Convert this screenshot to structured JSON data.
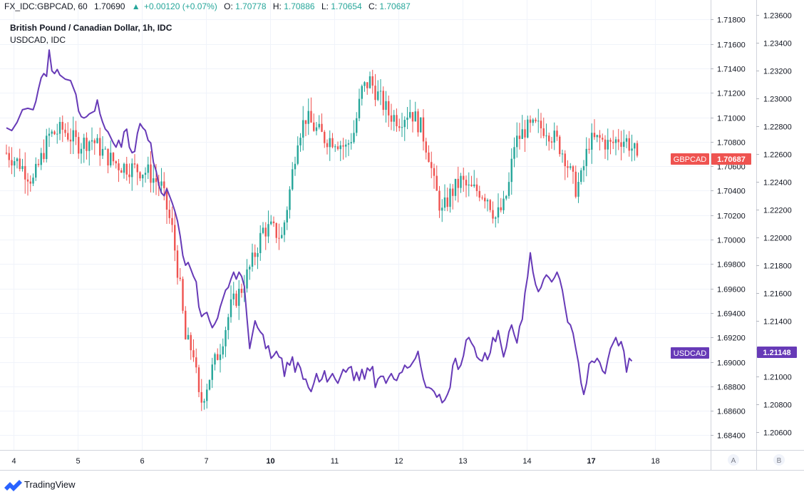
{
  "header": {
    "symbol": "FX_IDC:GBPCAD, 60",
    "last": "1.70690",
    "change": "+0.00120 (+0.07%)",
    "open_label": "O:",
    "open": "1.70778",
    "high_label": "H:",
    "high": "1.70886",
    "low_label": "L:",
    "low": "1.70654",
    "close_label": "C:",
    "close": "1.70687"
  },
  "legend": {
    "main": "British Pound / Canadian Dollar, 1h, IDC",
    "compare": "USDCAD, IDC"
  },
  "price_badges": {
    "gbpcad_label": "GBPCAD",
    "gbpcad_value": "1.70687",
    "usdcad_label": "USDCAD",
    "usdcad_value": "1.21148"
  },
  "scale_buttons": {
    "a": "A",
    "b": "B"
  },
  "footer": {
    "logo_text": "TradingView"
  },
  "colors": {
    "up": "#26a69a",
    "down": "#ef5350",
    "compare_line": "#673ab7",
    "grid": "#f0f3fa",
    "text": "#131722",
    "up_header": "#26a69a"
  },
  "chart_data": {
    "type": "candlestick+line",
    "left_axis": {
      "ticks": [
        "1.68400",
        "1.68600",
        "1.68800",
        "1.69000",
        "1.69200",
        "1.69400",
        "1.69600",
        "1.69800",
        "1.70000",
        "1.70200",
        "1.70400",
        "1.70600",
        "1.70800",
        "1.71000",
        "1.71200",
        "1.71400",
        "1.71600",
        "1.71800"
      ],
      "range": [
        1.6828,
        1.7196
      ]
    },
    "right_axis": {
      "ticks": [
        "1.20600",
        "1.20800",
        "1.21000",
        "1.21200",
        "1.21400",
        "1.21600",
        "1.21800",
        "1.22000",
        "1.22200",
        "1.22400",
        "1.22600",
        "1.22800",
        "1.23000",
        "1.23200",
        "1.23400",
        "1.23600"
      ],
      "range": [
        1.2047,
        1.2371
      ]
    },
    "x_axis": {
      "labels": [
        "4",
        "5",
        "6",
        "7",
        "10",
        "11",
        "12",
        "13",
        "14",
        "17",
        "18"
      ],
      "bold": [
        "10",
        "17"
      ],
      "range_hours": [
        0,
        250
      ]
    },
    "grid": true,
    "gbpcad_path": [
      [
        0,
        1.7071
      ],
      [
        5,
        1.7062
      ],
      [
        10,
        1.7048
      ],
      [
        16,
        1.7085
      ],
      [
        21,
        1.709
      ],
      [
        27,
        1.7078
      ],
      [
        32,
        1.7082
      ],
      [
        37,
        1.7069
      ],
      [
        42,
        1.7061
      ],
      [
        48,
        1.7058
      ],
      [
        53,
        1.7055
      ],
      [
        58,
        1.7043
      ],
      [
        62,
        1.7008
      ],
      [
        65,
        1.696
      ],
      [
        67,
        1.6918
      ],
      [
        70,
        1.6908
      ],
      [
        72,
        1.687
      ],
      [
        73,
        1.6868
      ],
      [
        76,
        1.6888
      ],
      [
        80,
        1.6912
      ],
      [
        84,
        1.6945
      ],
      [
        88,
        1.696
      ],
      [
        92,
        1.6982
      ],
      [
        96,
        1.7008
      ],
      [
        99,
        1.7009
      ],
      [
        103,
        1.7002
      ],
      [
        106,
        1.704
      ],
      [
        109,
        1.7085
      ],
      [
        112,
        1.71
      ],
      [
        115,
        1.7092
      ],
      [
        119,
        1.7083
      ],
      [
        123,
        1.7082
      ],
      [
        127,
        1.7075
      ],
      [
        130,
        1.7088
      ],
      [
        133,
        1.7122
      ],
      [
        136,
        1.713
      ],
      [
        139,
        1.7118
      ],
      [
        143,
        1.7103
      ],
      [
        147,
        1.7098
      ],
      [
        151,
        1.7106
      ],
      [
        155,
        1.7092
      ],
      [
        158,
        1.707
      ],
      [
        160,
        1.7045
      ],
      [
        163,
        1.7022
      ],
      [
        166,
        1.7037
      ],
      [
        170,
        1.7048
      ],
      [
        173,
        1.7041
      ],
      [
        177,
        1.704
      ],
      [
        180,
        1.7035
      ],
      [
        183,
        1.7018
      ],
      [
        186,
        1.7027
      ],
      [
        188,
        1.7045
      ],
      [
        190,
        1.7078
      ],
      [
        194,
        1.709
      ],
      [
        198,
        1.7092
      ],
      [
        202,
        1.7091
      ],
      [
        206,
        1.708
      ],
      [
        209,
        1.7068
      ],
      [
        211,
        1.7054
      ],
      [
        213,
        1.7042
      ],
      [
        215,
        1.705
      ],
      [
        218,
        1.708
      ],
      [
        222,
        1.7082
      ],
      [
        226,
        1.7077
      ],
      [
        229,
        1.7083
      ],
      [
        232,
        1.7081
      ],
      [
        235,
        1.7072
      ],
      [
        236,
        1.7069
      ]
    ],
    "usdcad_path": [
      [
        0,
        1.2279
      ],
      [
        2,
        1.2277
      ],
      [
        4,
        1.2283
      ],
      [
        6,
        1.2292
      ],
      [
        8,
        1.2293
      ],
      [
        10,
        1.2292
      ],
      [
        11,
        1.2298
      ],
      [
        12,
        1.2307
      ],
      [
        13,
        1.2315
      ],
      [
        14,
        1.2318
      ],
      [
        15,
        1.2316
      ],
      [
        16,
        1.2335
      ],
      [
        17,
        1.232
      ],
      [
        18,
        1.2318
      ],
      [
        19,
        1.2321
      ],
      [
        20,
        1.2317
      ],
      [
        22,
        1.2314
      ],
      [
        24,
        1.2313
      ],
      [
        26,
        1.2303
      ],
      [
        27,
        1.2291
      ],
      [
        28,
        1.2287
      ],
      [
        29,
        1.2286
      ],
      [
        30,
        1.2287
      ],
      [
        31,
        1.2289
      ],
      [
        33,
        1.2291
      ],
      [
        34,
        1.2299
      ],
      [
        35,
        1.2289
      ],
      [
        36,
        1.2283
      ],
      [
        37,
        1.2278
      ],
      [
        38,
        1.2276
      ],
      [
        39,
        1.2272
      ],
      [
        40,
        1.2268
      ],
      [
        41,
        1.2265
      ],
      [
        42,
        1.227
      ],
      [
        43,
        1.2265
      ],
      [
        44,
        1.2276
      ],
      [
        45,
        1.2278
      ],
      [
        46,
        1.2265
      ],
      [
        47,
        1.2261
      ],
      [
        48,
        1.2262
      ],
      [
        49,
        1.2275
      ],
      [
        50,
        1.2282
      ],
      [
        51,
        1.2279
      ],
      [
        52,
        1.2277
      ],
      [
        53,
        1.227
      ],
      [
        54,
        1.2268
      ],
      [
        55,
        1.2254
      ],
      [
        56,
        1.2248
      ],
      [
        57,
        1.2238
      ],
      [
        58,
        1.2232
      ],
      [
        59,
        1.223
      ],
      [
        60,
        1.2235
      ],
      [
        61,
        1.223
      ],
      [
        62,
        1.2225
      ],
      [
        63,
        1.2219
      ],
      [
        64,
        1.2212
      ],
      [
        65,
        1.2201
      ],
      [
        66,
        1.2187
      ],
      [
        67,
        1.218
      ],
      [
        68,
        1.2182
      ],
      [
        69,
        1.2177
      ],
      [
        70,
        1.2172
      ],
      [
        71,
        1.2168
      ],
      [
        72,
        1.215
      ],
      [
        73,
        1.2143
      ],
      [
        74,
        1.2145
      ],
      [
        75,
        1.2146
      ],
      [
        76,
        1.214
      ],
      [
        77,
        1.2135
      ],
      [
        78,
        1.2138
      ],
      [
        79,
        1.2142
      ],
      [
        80,
        1.215
      ],
      [
        82,
        1.2162
      ],
      [
        83,
        1.2164
      ],
      [
        84,
        1.217
      ],
      [
        85,
        1.2175
      ],
      [
        86,
        1.217
      ],
      [
        87,
        1.2175
      ],
      [
        88,
        1.2172
      ],
      [
        89,
        1.2165
      ],
      [
        90,
        1.2142
      ],
      [
        91,
        1.212
      ],
      [
        92,
        1.213
      ],
      [
        93,
        1.214
      ],
      [
        94,
        1.2135
      ],
      [
        95,
        1.2132
      ],
      [
        96,
        1.213
      ],
      [
        97,
        1.212
      ],
      [
        98,
        1.2122
      ],
      [
        99,
        1.2113
      ],
      [
        100,
        1.2115
      ],
      [
        101,
        1.2118
      ],
      [
        102,
        1.2114
      ],
      [
        103,
        1.2113
      ],
      [
        104,
        1.21
      ],
      [
        105,
        1.211
      ],
      [
        106,
        1.2108
      ],
      [
        107,
        1.2114
      ],
      [
        108,
        1.2103
      ],
      [
        109,
        1.211
      ],
      [
        110,
        1.2106
      ],
      [
        111,
        1.2098
      ],
      [
        112,
        1.2098
      ],
      [
        113,
        1.2092
      ],
      [
        114,
        1.2089
      ],
      [
        115,
        1.2095
      ],
      [
        116,
        1.2102
      ],
      [
        117,
        1.2096
      ],
      [
        118,
        1.2098
      ],
      [
        119,
        1.2104
      ],
      [
        120,
        1.2096
      ],
      [
        121,
        1.2099
      ],
      [
        122,
        1.2102
      ],
      [
        123,
        1.2098
      ],
      [
        124,
        1.2095
      ],
      [
        125,
        1.21
      ],
      [
        126,
        1.2105
      ],
      [
        127,
        1.2103
      ],
      [
        128,
        1.2106
      ],
      [
        129,
        1.2107
      ],
      [
        130,
        1.2097
      ],
      [
        131,
        1.2103
      ],
      [
        132,
        1.2097
      ],
      [
        133,
        1.2105
      ],
      [
        134,
        1.2098
      ],
      [
        135,
        1.2106
      ],
      [
        136,
        1.2104
      ],
      [
        137,
        1.2107
      ],
      [
        138,
        1.2092
      ],
      [
        139,
        1.2098
      ],
      [
        140,
        1.21
      ],
      [
        141,
        1.21
      ],
      [
        142,
        1.2095
      ],
      [
        143,
        1.2099
      ],
      [
        144,
        1.2102
      ],
      [
        145,
        1.2098
      ],
      [
        146,
        1.2097
      ],
      [
        147,
        1.2102
      ],
      [
        148,
        1.2103
      ],
      [
        149,
        1.2108
      ],
      [
        150,
        1.2106
      ],
      [
        151,
        1.2107
      ],
      [
        152,
        1.211
      ],
      [
        153,
        1.2113
      ],
      [
        154,
        1.2118
      ],
      [
        155,
        1.2107
      ],
      [
        156,
        1.2098
      ],
      [
        157,
        1.2092
      ],
      [
        158,
        1.2092
      ],
      [
        159,
        1.2091
      ],
      [
        160,
        1.2089
      ],
      [
        161,
        1.2085
      ],
      [
        162,
        1.2087
      ],
      [
        163,
        1.2081
      ],
      [
        164,
        1.2083
      ],
      [
        165,
        1.2087
      ],
      [
        166,
        1.2092
      ],
      [
        167,
        1.2108
      ],
      [
        168,
        1.2113
      ],
      [
        169,
        1.2105
      ],
      [
        170,
        1.2108
      ],
      [
        171,
        1.2115
      ],
      [
        172,
        1.2126
      ],
      [
        173,
        1.2128
      ],
      [
        174,
        1.2124
      ],
      [
        175,
        1.2121
      ],
      [
        176,
        1.2114
      ],
      [
        177,
        1.2112
      ],
      [
        178,
        1.2111
      ],
      [
        179,
        1.2117
      ],
      [
        180,
        1.2112
      ],
      [
        181,
        1.2117
      ],
      [
        182,
        1.2128
      ],
      [
        183,
        1.2125
      ],
      [
        184,
        1.2133
      ],
      [
        185,
        1.2123
      ],
      [
        186,
        1.2114
      ],
      [
        187,
        1.2121
      ],
      [
        188,
        1.2132
      ],
      [
        189,
        1.2137
      ],
      [
        190,
        1.213
      ],
      [
        191,
        1.2124
      ],
      [
        192,
        1.2136
      ],
      [
        193,
        1.2141
      ],
      [
        194,
        1.216
      ],
      [
        195,
        1.2172
      ],
      [
        196,
        1.2189
      ],
      [
        197,
        1.2175
      ],
      [
        198,
        1.2166
      ],
      [
        199,
        1.2161
      ],
      [
        200,
        1.2164
      ],
      [
        201,
        1.217
      ],
      [
        202,
        1.2173
      ],
      [
        203,
        1.2171
      ],
      [
        204,
        1.2168
      ],
      [
        205,
        1.2171
      ],
      [
        206,
        1.2175
      ],
      [
        207,
        1.217
      ],
      [
        208,
        1.2162
      ],
      [
        209,
        1.215
      ],
      [
        210,
        1.2139
      ],
      [
        211,
        1.2137
      ],
      [
        212,
        1.2131
      ],
      [
        213,
        1.212
      ],
      [
        214,
        1.211
      ],
      [
        215,
        1.2095
      ],
      [
        216,
        1.2087
      ],
      [
        217,
        1.2095
      ],
      [
        218,
        1.2109
      ],
      [
        219,
        1.2111
      ],
      [
        220,
        1.211
      ],
      [
        221,
        1.2113
      ],
      [
        222,
        1.211
      ],
      [
        223,
        1.2104
      ],
      [
        224,
        1.2102
      ],
      [
        225,
        1.2112
      ],
      [
        226,
        1.212
      ],
      [
        227,
        1.2124
      ],
      [
        228,
        1.2128
      ],
      [
        229,
        1.2122
      ],
      [
        230,
        1.2125
      ],
      [
        231,
        1.2118
      ],
      [
        232,
        1.2103
      ],
      [
        233,
        1.2113
      ],
      [
        234,
        1.2111
      ]
    ]
  }
}
